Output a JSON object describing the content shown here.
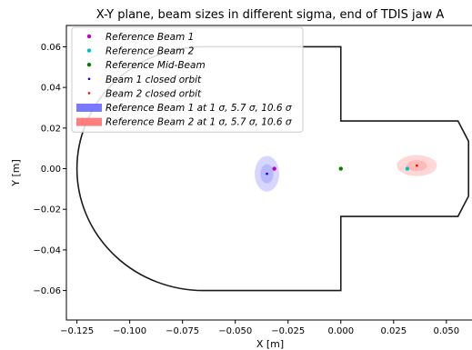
{
  "chart_data": {
    "type": "scatter",
    "title": "X-Y plane, beam sizes in different sigma, end of TDIS jaw A",
    "xlabel": "X [m]",
    "ylabel": "Y [m]",
    "xlim": [
      -0.13,
      0.063
    ],
    "ylim": [
      -0.0745,
      0.0705
    ],
    "grid": false,
    "legend_position": "top-left",
    "x_ticks": [
      -0.125,
      -0.1,
      -0.075,
      -0.05,
      -0.025,
      0.0,
      0.025,
      0.05
    ],
    "x_tick_labels": [
      "−0.125",
      "−0.100",
      "−0.075",
      "−0.050",
      "−0.025",
      "0.000",
      "0.025",
      "0.050"
    ],
    "y_ticks": [
      -0.06,
      -0.04,
      -0.02,
      0.0,
      0.02,
      0.04,
      0.06
    ],
    "y_tick_labels": [
      "−0.06",
      "−0.04",
      "−0.02",
      "0.00",
      "0.02",
      "0.04",
      "0.06"
    ],
    "aperture": {
      "color": "#1a1a1a",
      "x": [
        0.0,
        -0.065,
        -0.065,
        0.0,
        0.0,
        0.0555,
        0.0605,
        0.0605,
        0.0555,
        0.0,
        0.0
      ],
      "y": [
        -0.06,
        -0.06,
        0.06,
        0.06,
        0.0235,
        0.0235,
        0.0135,
        -0.0135,
        -0.0235,
        -0.0235,
        -0.06
      ]
    },
    "points": [
      {
        "name": "Reference Beam 1",
        "x": -0.0315,
        "y": 0.0,
        "color": "#bf00bf",
        "marker": "dot"
      },
      {
        "name": "Reference Beam 2",
        "x": 0.0315,
        "y": 0.0,
        "color": "#00bfbf",
        "marker": "dot"
      },
      {
        "name": "Reference Mid-Beam",
        "x": 0.0,
        "y": 0.0,
        "color": "#008000",
        "marker": "dot"
      },
      {
        "name": "Beam 1 closed orbit",
        "x": -0.035,
        "y": -0.0025,
        "color": "#0000ff",
        "marker": "small"
      },
      {
        "name": "Beam 2 closed orbit",
        "x": 0.036,
        "y": 0.0015,
        "color": "#ff0000",
        "marker": "small"
      }
    ],
    "beam_envelopes": [
      {
        "name": "Reference Beam 1 at 1 σ, 5.7 σ, 10.6 σ",
        "color": "#6a6aff",
        "center": [
          -0.035,
          -0.0025
        ],
        "sigma_levels": [
          1,
          5.7,
          10.6
        ],
        "semi_axes_x": [
          0.00055,
          0.0031,
          0.0058
        ],
        "semi_axes_y": [
          0.0006,
          0.0047,
          0.0088
        ]
      },
      {
        "name": "Reference Beam 2 at 1 σ, 5.7 σ, 10.6 σ",
        "color": "#ff7070",
        "center": [
          0.036,
          0.0015
        ],
        "sigma_levels": [
          1,
          5.7,
          10.6
        ],
        "semi_axes_x": [
          0.0007,
          0.0048,
          0.0095
        ],
        "semi_axes_y": [
          0.0005,
          0.0027,
          0.0052
        ]
      }
    ]
  }
}
